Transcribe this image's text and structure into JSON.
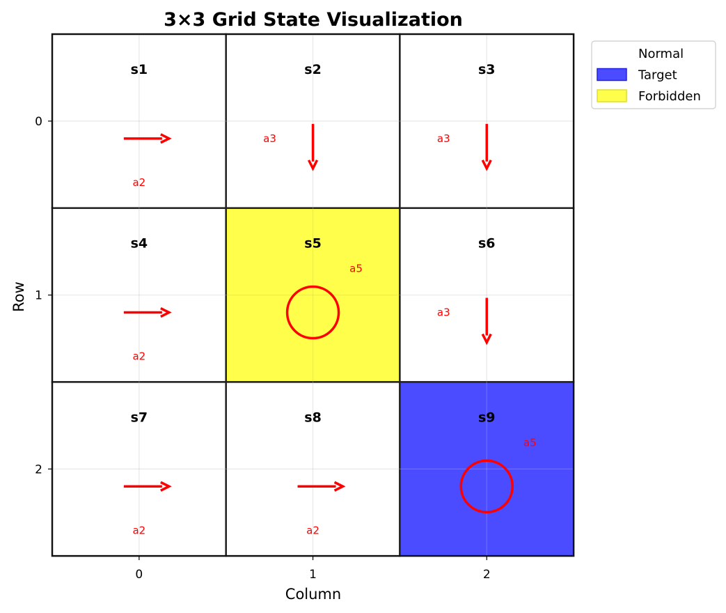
{
  "chart_data": {
    "type": "grid",
    "title": "3×3 Grid State Visualization",
    "xlabel": "Column",
    "ylabel": "Row",
    "rows": 3,
    "cols": 3,
    "x_ticks": [
      "0",
      "1",
      "2"
    ],
    "y_ticks": [
      "0",
      "1",
      "2"
    ],
    "grid": true,
    "legend": {
      "placement": "outside-top-right",
      "entries": [
        {
          "label": "Normal",
          "color": "#ffffff",
          "swatch": false
        },
        {
          "label": "Target",
          "color": "#4b4bff",
          "swatch": true
        },
        {
          "label": "Forbidden",
          "color": "#ffff4b",
          "swatch": true
        }
      ]
    },
    "colors": {
      "normal": "#ffffff",
      "target": "#4b4bff",
      "forbidden": "#ffff4b",
      "policy": "#ff0000",
      "cell_border": "#222222"
    },
    "cells": [
      {
        "state": "s1",
        "row": 0,
        "col": 0,
        "type": "normal",
        "action": "a2",
        "direction": "right"
      },
      {
        "state": "s2",
        "row": 0,
        "col": 1,
        "type": "normal",
        "action": "a3",
        "direction": "down"
      },
      {
        "state": "s3",
        "row": 0,
        "col": 2,
        "type": "normal",
        "action": "a3",
        "direction": "down"
      },
      {
        "state": "s4",
        "row": 1,
        "col": 0,
        "type": "normal",
        "action": "a2",
        "direction": "right"
      },
      {
        "state": "s5",
        "row": 1,
        "col": 1,
        "type": "forbidden",
        "action": "a5",
        "direction": "stay"
      },
      {
        "state": "s6",
        "row": 1,
        "col": 2,
        "type": "normal",
        "action": "a3",
        "direction": "down"
      },
      {
        "state": "s7",
        "row": 2,
        "col": 0,
        "type": "normal",
        "action": "a2",
        "direction": "right"
      },
      {
        "state": "s8",
        "row": 2,
        "col": 1,
        "type": "normal",
        "action": "a2",
        "direction": "right"
      },
      {
        "state": "s9",
        "row": 2,
        "col": 2,
        "type": "target",
        "action": "a5",
        "direction": "stay"
      }
    ]
  }
}
